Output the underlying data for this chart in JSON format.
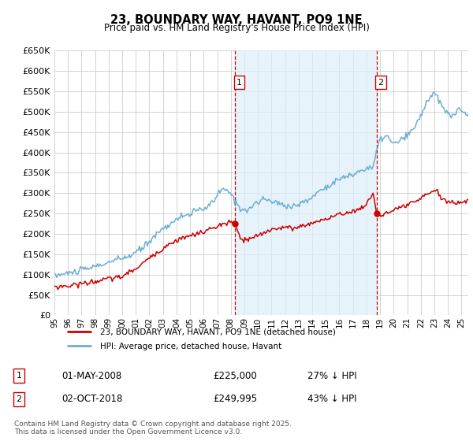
{
  "title": "23, BOUNDARY WAY, HAVANT, PO9 1NE",
  "subtitle": "Price paid vs. HM Land Registry's House Price Index (HPI)",
  "legend_line1": "23, BOUNDARY WAY, HAVANT, PO9 1NE (detached house)",
  "legend_line2": "HPI: Average price, detached house, Havant",
  "sale1_label": "1",
  "sale1_date": "01-MAY-2008",
  "sale1_price": "£225,000",
  "sale1_hpi": "27% ↓ HPI",
  "sale2_label": "2",
  "sale2_date": "02-OCT-2018",
  "sale2_price": "£249,995",
  "sale2_hpi": "43% ↓ HPI",
  "footnote": "Contains HM Land Registry data © Crown copyright and database right 2025.\nThis data is licensed under the Open Government Licence v3.0.",
  "hpi_color": "#6baed6",
  "hpi_fill_color": "#ddeeff",
  "sale_color": "#cc0000",
  "vline_color": "#cc0000",
  "bg_color": "#ffffff",
  "grid_color": "#cccccc",
  "ylim": [
    0,
    650000
  ],
  "yticks": [
    0,
    50000,
    100000,
    150000,
    200000,
    250000,
    300000,
    350000,
    400000,
    450000,
    500000,
    550000,
    600000,
    650000
  ],
  "sale1_x": 2008.33,
  "sale1_y": 225000,
  "sale2_x": 2018.75,
  "sale2_y": 249995,
  "xlim_start": 1995,
  "xlim_end": 2025.5
}
